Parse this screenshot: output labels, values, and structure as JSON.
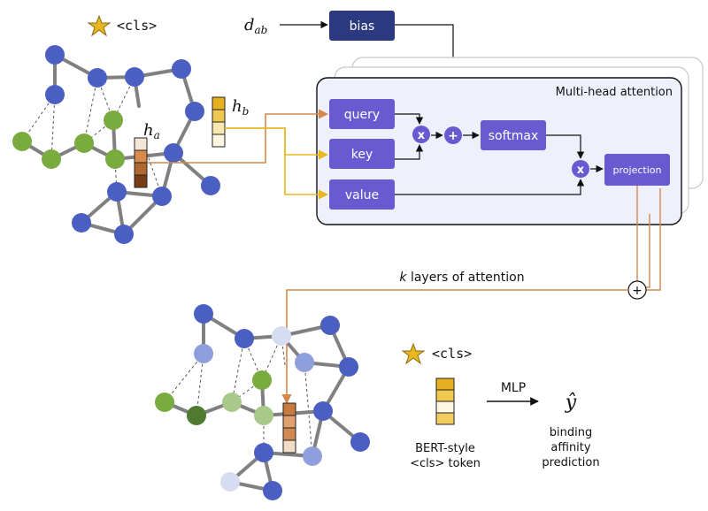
{
  "cls_token_top": "<cls>",
  "cls_token_bottom": "<cls>",
  "h_a": {
    "base": "h",
    "sub": "a"
  },
  "h_b": {
    "base": "h",
    "sub": "b"
  },
  "d_ab": {
    "base": "d",
    "sub": "ab"
  },
  "bias_label": "bias",
  "attention_panel_title": "Multi-head attention",
  "query_label": "query",
  "key_label": "key",
  "value_label": "value",
  "softmax_label": "softmax",
  "projection_label": "projection",
  "multiply_symbol": "x",
  "add_symbol": "+",
  "k_layers_var": "k",
  "k_layers_rest": "layers of attention",
  "mlp_label": "MLP",
  "y_hat": "ŷ",
  "bert_line1": "BERT-style",
  "bert_line2": "<cls> token",
  "prediction_line1": "binding",
  "prediction_line2": "affinity",
  "prediction_line3": "prediction",
  "colors": {
    "node_blue": "#4a5fc1",
    "node_green": "#7aab3f",
    "node_dark_green": "#4f7a30",
    "node_light_green": "#a9c98a",
    "node_light_blue": "#8f9fdb",
    "node_pale_blue": "#d6dcf2",
    "box_purple": "#6a5ad2",
    "bias_navy": "#2b3a80",
    "panel_fill": "#eef0fc",
    "edge_gray": "#808080",
    "orange_line": "#d4884b",
    "yellow_line": "#e8b820"
  }
}
